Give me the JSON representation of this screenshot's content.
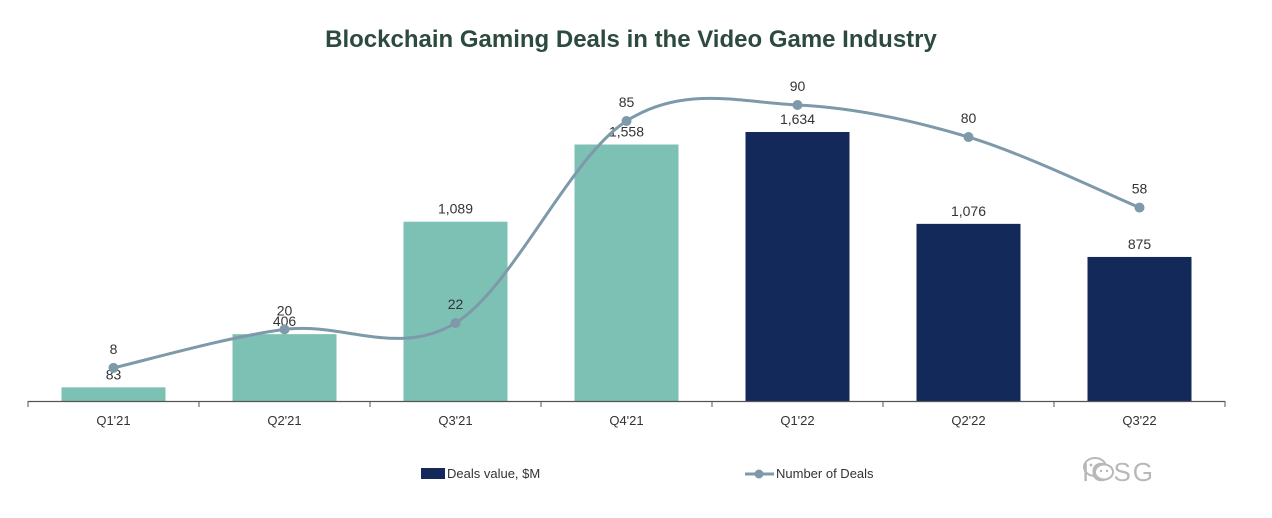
{
  "title": "Blockchain Gaming Deals in the Video Game Industry",
  "colors": {
    "bar_2021": "#7dc0b4",
    "bar_2022": "#13295a",
    "line": "#7d99aa",
    "axis": "#555555",
    "title": "#2d4a3e"
  },
  "chart_data": {
    "type": "bar",
    "title": "Blockchain Gaming Deals in the Video Game Industry",
    "categories": [
      "Q1'21",
      "Q2'21",
      "Q3'21",
      "Q4'21",
      "Q1'22",
      "Q2'22",
      "Q3'22"
    ],
    "series": [
      {
        "name": "Deals value, $M",
        "type": "bar",
        "values": [
          83,
          406,
          1089,
          1558,
          1634,
          1076,
          875
        ],
        "labels": [
          "83",
          "406",
          "1,089",
          "1,558",
          "1,634",
          "1,076",
          "875"
        ]
      },
      {
        "name": "Number of Deals",
        "type": "line",
        "values": [
          8,
          20,
          22,
          85,
          90,
          80,
          58
        ],
        "labels": [
          "8",
          "20",
          "22",
          "85",
          "90",
          "80",
          "58"
        ]
      }
    ],
    "legend_position": "bottom",
    "grid": false
  },
  "watermark": "IOSG"
}
